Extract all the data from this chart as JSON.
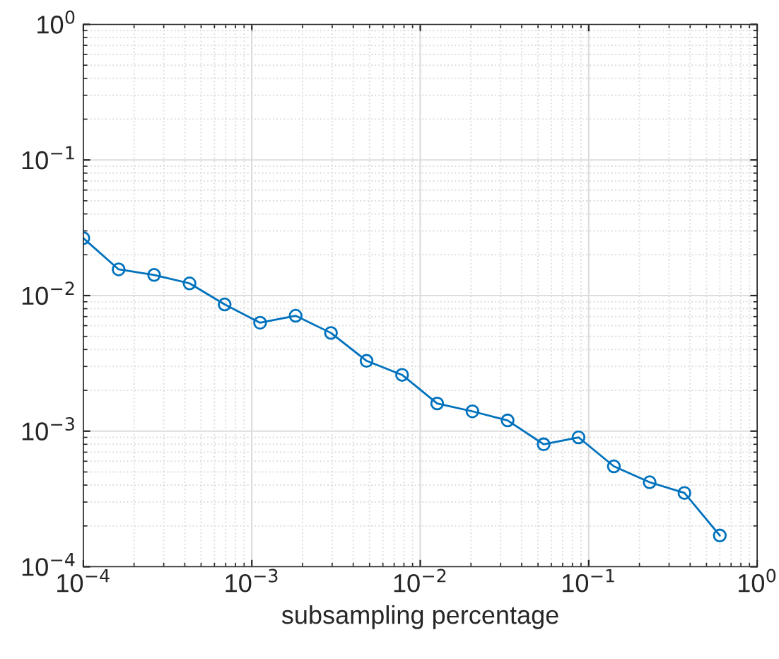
{
  "chart_data": {
    "type": "line",
    "xlabel": "subsampling percentage",
    "log": "xy",
    "grid": true,
    "marker": "circle",
    "line_style": "solid",
    "x": [
      0.0001,
      0.000162,
      0.000263,
      0.000427,
      0.00069,
      0.00112,
      0.00182,
      0.00295,
      0.0048,
      0.0078,
      0.0126,
      0.0204,
      0.033,
      0.054,
      0.087,
      0.141,
      0.23,
      0.37,
      0.6
    ],
    "series": [
      {
        "color": "#0072bd",
        "values": [
          0.0265,
          0.0156,
          0.0142,
          0.0123,
          0.0086,
          0.0063,
          0.0071,
          0.0053,
          0.0033,
          0.0026,
          0.0016,
          0.0014,
          0.0012,
          0.0008,
          0.0009,
          0.00055,
          0.00042,
          0.00035,
          0.00017
        ]
      }
    ],
    "xlim": [
      0.0001,
      1
    ],
    "ylim": [
      0.0001,
      1
    ],
    "xticks": [
      {
        "value": 0.0001,
        "label": "10$^{−4}$"
      },
      {
        "value": 0.001,
        "label": "10$^{−3}$"
      },
      {
        "value": 0.01,
        "label": "10$^{−2}$"
      },
      {
        "value": 0.1,
        "label": "10$^{−1}$"
      },
      {
        "value": 1,
        "label": "10$^{0}$"
      }
    ],
    "yticks": [
      {
        "value": 0.0001,
        "label": "10$^{−4}$"
      },
      {
        "value": 0.001,
        "label": "10$^{−3}$"
      },
      {
        "value": 0.01,
        "label": "10$^{−2}$"
      },
      {
        "value": 0.1,
        "label": "10$^{−1}$"
      },
      {
        "value": 1,
        "label": "10$^{0}$"
      }
    ]
  }
}
